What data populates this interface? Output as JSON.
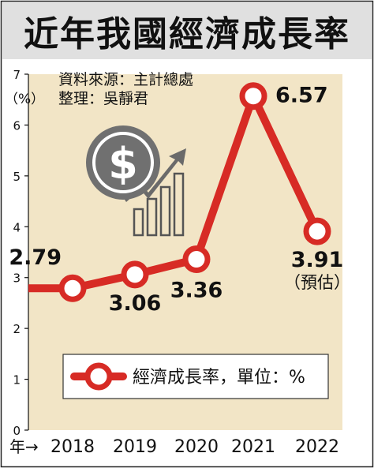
{
  "chart_data": {
    "type": "line",
    "title": "近年我國經濟成長率",
    "source_line": "資料來源：主計總處",
    "editor_line": "整理：吳靜君",
    "y_unit": "（%）",
    "x_axis_prefix": "年→",
    "categories": [
      "2018",
      "2019",
      "2020",
      "2021",
      "2022"
    ],
    "series": [
      {
        "name": "經濟成長率，單位：%",
        "values": [
          2.79,
          3.06,
          3.36,
          6.57,
          3.91
        ],
        "value_labels": [
          "2.79",
          "3.06",
          "3.36",
          "6.57",
          "3.91"
        ]
      }
    ],
    "annotations": [
      {
        "category": "2022",
        "text": "（預估）"
      }
    ],
    "yticks": [
      "0",
      "1",
      "2",
      "3",
      "4",
      "5",
      "6",
      "7"
    ],
    "ylim": [
      0,
      7
    ],
    "grid": false,
    "legend_position": "bottom-right",
    "colors": {
      "line": "#d72b25",
      "plot_background": "#f2e5c6",
      "title_background": "#e0e0e0",
      "text": "#111111"
    },
    "decoration": "dollar-coin-growth-icon"
  }
}
